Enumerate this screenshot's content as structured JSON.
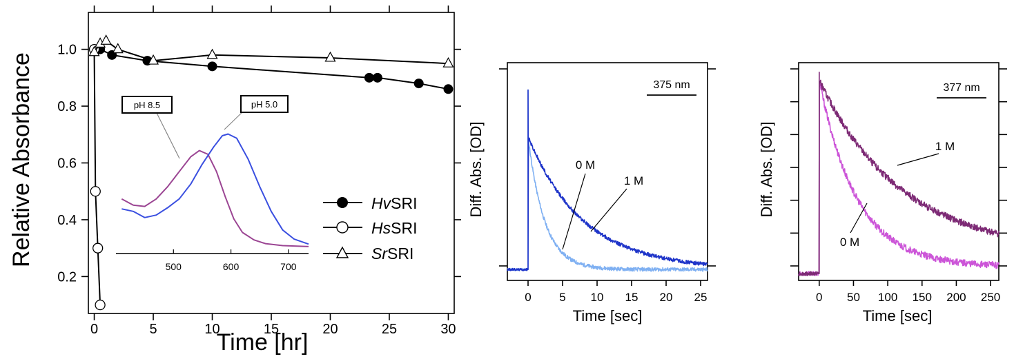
{
  "chart_data": [
    {
      "type": "line",
      "ylabel": "Relative Absorbance",
      "xlabel": "Time [hr]",
      "xlim": [
        -0.5,
        30.5
      ],
      "ylim": [
        0.07,
        1.13
      ],
      "xticks": [
        "0",
        "5",
        "10",
        "15",
        "20",
        "25",
        "30"
      ],
      "yticks": [
        "0.2",
        "0.4",
        "0.6",
        "0.8",
        "1.0"
      ],
      "legend_placement": "bottom-right",
      "series": [
        {
          "name_prefix": "Hv",
          "name_suffix": "SRI",
          "marker": "filled-circle",
          "color": "#000000",
          "points": [
            [
              0,
              1.0
            ],
            [
              0.5,
              1.0
            ],
            [
              1.5,
              0.98
            ],
            [
              4.5,
              0.96
            ],
            [
              10,
              0.94
            ],
            [
              23.3,
              0.9
            ],
            [
              24,
              0.9
            ],
            [
              27.5,
              0.88
            ],
            [
              30,
              0.86
            ]
          ]
        },
        {
          "name_prefix": "Hs",
          "name_suffix": "SRI",
          "marker": "open-circle",
          "color": "#000000",
          "points": [
            [
              0,
              1.0
            ],
            [
              0.1,
              0.5
            ],
            [
              0.3,
              0.3
            ],
            [
              0.5,
              0.1
            ]
          ]
        },
        {
          "name_prefix": "Sr",
          "name_suffix": "SRI",
          "marker": "open-triangle",
          "color": "#000000",
          "points": [
            [
              0,
              0.99
            ],
            [
              0.5,
              1.02
            ],
            [
              1,
              1.03
            ],
            [
              2,
              1.0
            ],
            [
              5,
              0.96
            ],
            [
              10,
              0.98
            ],
            [
              20,
              0.97
            ],
            [
              30,
              0.95
            ]
          ]
        }
      ],
      "inset": {
        "type": "line",
        "xlim": [
          400,
          735
        ],
        "ylim": [
          0.2,
          0.75
        ],
        "xticks": [
          "500",
          "600",
          "700"
        ],
        "series": [
          {
            "name": "pH 8.5",
            "color": "#9b4593",
            "points": [
              [
                410,
                0.42
              ],
              [
                430,
                0.395
              ],
              [
                450,
                0.39
              ],
              [
                470,
                0.42
              ],
              [
                490,
                0.47
              ],
              [
                510,
                0.53
              ],
              [
                530,
                0.59
              ],
              [
                545,
                0.615
              ],
              [
                560,
                0.6
              ],
              [
                575,
                0.53
              ],
              [
                590,
                0.43
              ],
              [
                605,
                0.34
              ],
              [
                620,
                0.285
              ],
              [
                640,
                0.255
              ],
              [
                660,
                0.24
              ],
              [
                690,
                0.232
              ],
              [
                735,
                0.228
              ]
            ]
          },
          {
            "name": "pH 5.0",
            "color": "#3a4fe0",
            "points": [
              [
                410,
                0.38
              ],
              [
                430,
                0.37
              ],
              [
                450,
                0.345
              ],
              [
                470,
                0.355
              ],
              [
                490,
                0.385
              ],
              [
                510,
                0.42
              ],
              [
                530,
                0.48
              ],
              [
                550,
                0.56
              ],
              [
                570,
                0.63
              ],
              [
                585,
                0.675
              ],
              [
                595,
                0.682
              ],
              [
                610,
                0.665
              ],
              [
                630,
                0.58
              ],
              [
                650,
                0.47
              ],
              [
                670,
                0.37
              ],
              [
                690,
                0.295
              ],
              [
                710,
                0.258
              ],
              [
                735,
                0.238
              ]
            ]
          }
        ]
      }
    },
    {
      "type": "line",
      "ylabel": "Diff. Abs. [OD]",
      "xlabel": "Time [sec]",
      "xlim": [
        -3,
        26
      ],
      "ylim": [
        -0.1,
        1.9
      ],
      "xticks": [
        "0",
        "5",
        "10",
        "15",
        "20",
        "25"
      ],
      "wavelength": "375 nm",
      "series": [
        {
          "label": "0 M",
          "color": "#7fb0f2",
          "baseline": 0,
          "amplitude": 1.22,
          "tau": 2.4,
          "spike": 1.65
        },
        {
          "label": "1 M",
          "color": "#1e34c9",
          "baseline": 0,
          "amplitude": 1.22,
          "tau": 8.0,
          "spike": 1.65
        }
      ]
    },
    {
      "type": "line",
      "ylabel": "Diff. Abs. [OD]",
      "xlabel": "Time [sec]",
      "xlim": [
        -30,
        262
      ],
      "ylim": [
        -0.05,
        1.55
      ],
      "xticks": [
        "0",
        "50",
        "100",
        "150",
        "200",
        "250"
      ],
      "wavelength": "377 nm",
      "series": [
        {
          "label": "0 M",
          "color": "#cc55d8",
          "baseline": 0,
          "amplitude": 1.42,
          "tau": 55,
          "offset": 0.05,
          "spike": 1.48
        },
        {
          "label": "1 M",
          "color": "#7d2a75",
          "baseline": 0,
          "amplitude": 1.42,
          "tau": 120,
          "offset": 0.15,
          "spike": 1.48
        }
      ]
    }
  ]
}
